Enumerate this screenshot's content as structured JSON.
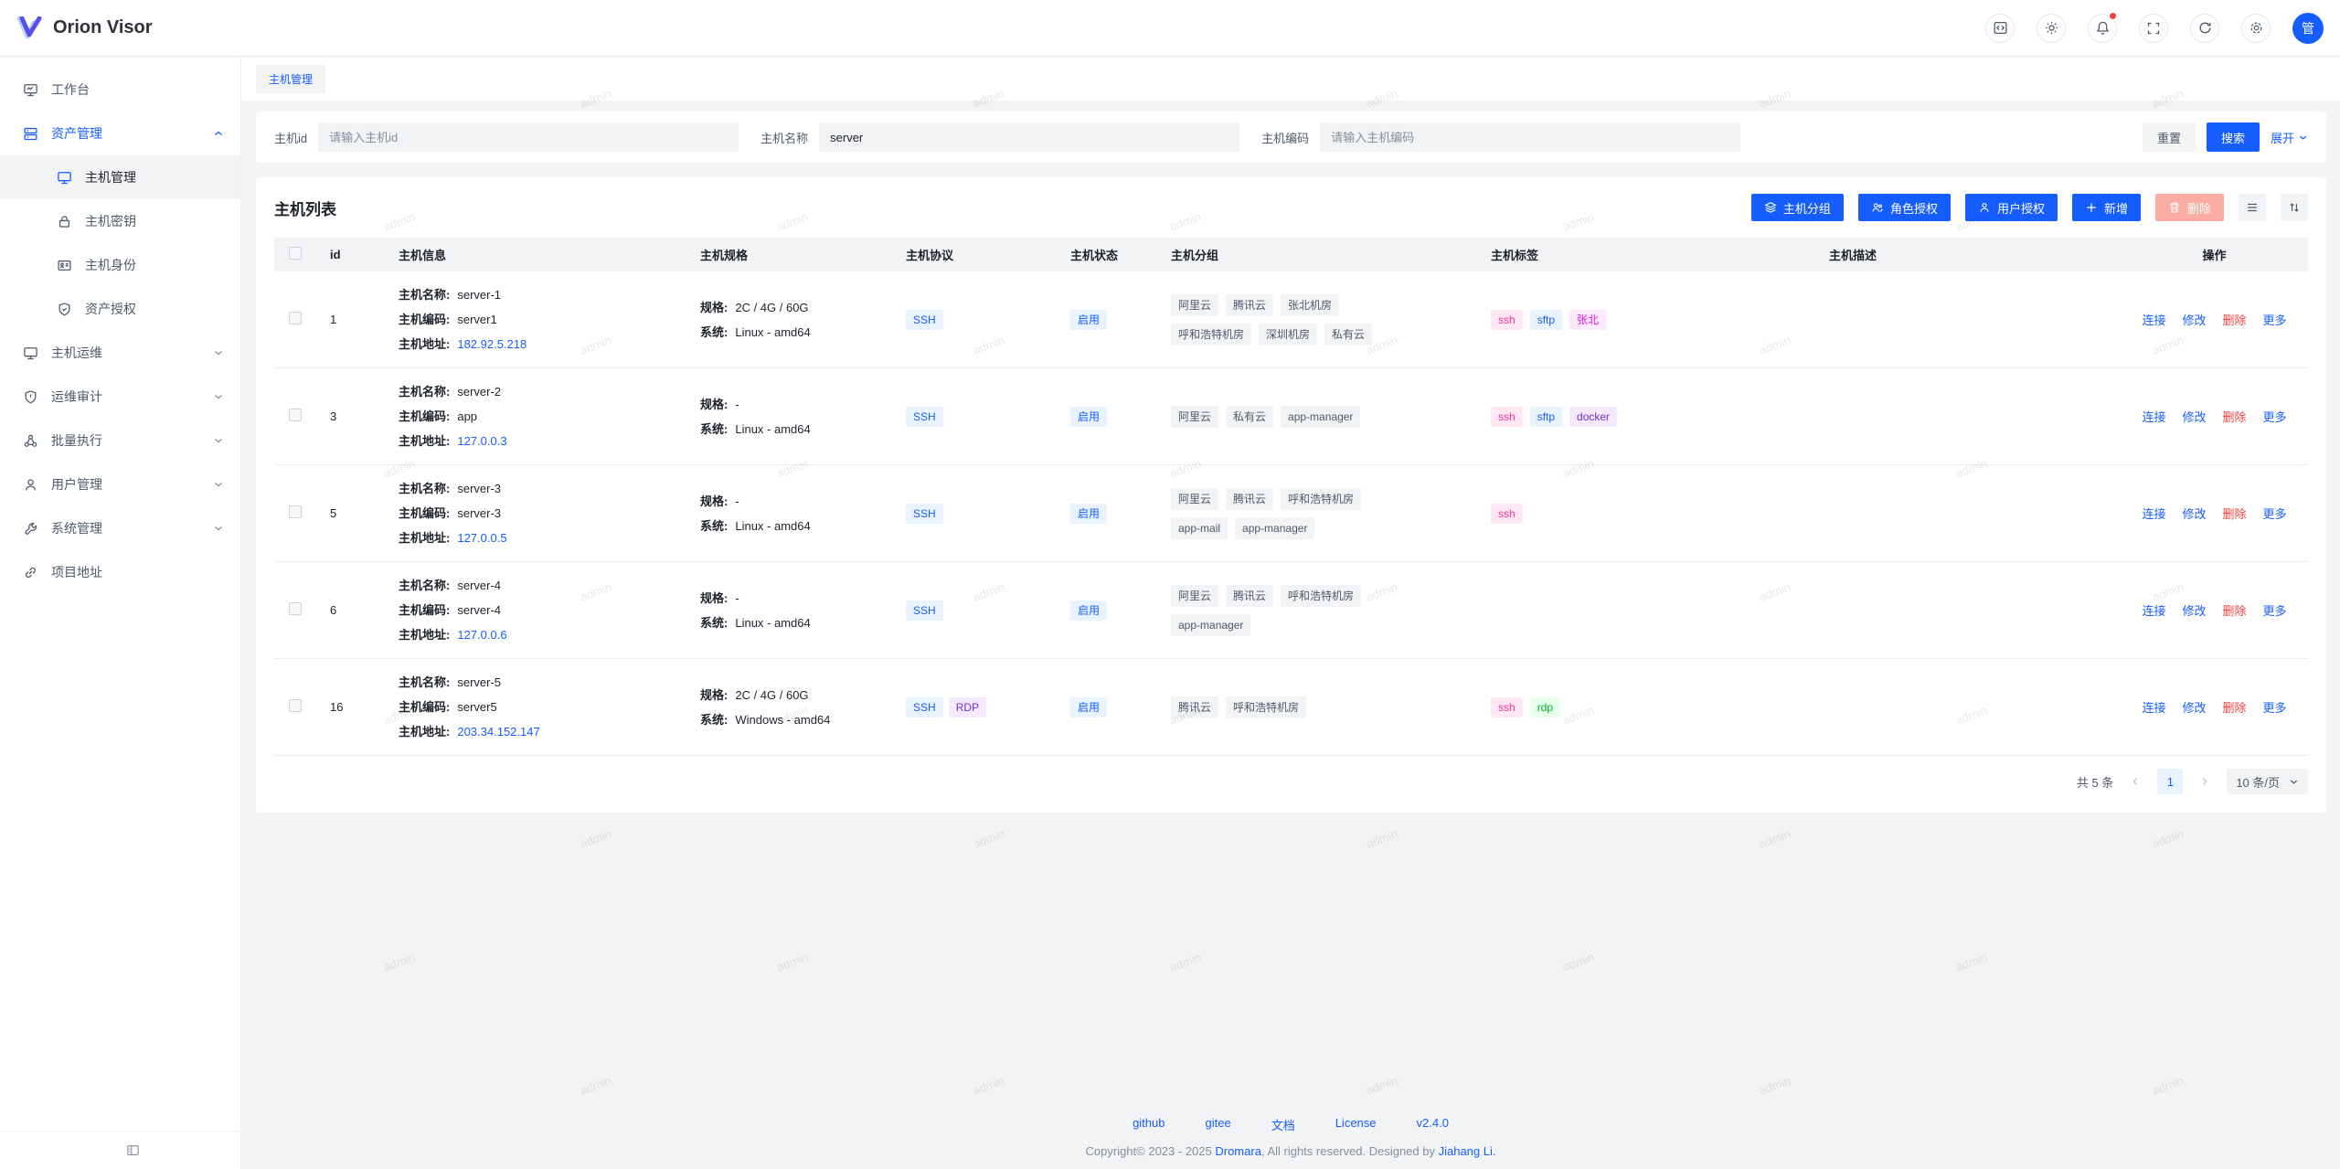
{
  "app": {
    "name": "Orion Visor",
    "avatar": "管"
  },
  "page": {
    "tab": "主机管理"
  },
  "sidebar": {
    "items": [
      {
        "label": "工作台"
      },
      {
        "label": "资产管理",
        "expanded": true,
        "children": [
          {
            "label": "主机管理",
            "selected": true
          },
          {
            "label": "主机密钥"
          },
          {
            "label": "主机身份"
          },
          {
            "label": "资产授权"
          }
        ]
      },
      {
        "label": "主机运维"
      },
      {
        "label": "运维审计"
      },
      {
        "label": "批量执行"
      },
      {
        "label": "用户管理"
      },
      {
        "label": "系统管理"
      },
      {
        "label": "项目地址"
      }
    ]
  },
  "search": {
    "fields": [
      {
        "label": "主机id",
        "placeholder": "请输入主机id",
        "value": ""
      },
      {
        "label": "主机名称",
        "placeholder": "",
        "value": "server"
      },
      {
        "label": "主机编码",
        "placeholder": "请输入主机编码",
        "value": ""
      }
    ],
    "reset_label": "重置",
    "search_label": "搜索",
    "expand_label": "展开"
  },
  "list": {
    "title": "主机列表",
    "toolbar": [
      {
        "label": "主机分组"
      },
      {
        "label": "角色授权"
      },
      {
        "label": "用户授权"
      },
      {
        "label": "新增"
      },
      {
        "label": "删除",
        "disabled": true
      }
    ],
    "columns": [
      "id",
      "主机信息",
      "主机规格",
      "主机协议",
      "主机状态",
      "主机分组",
      "主机标签",
      "主机描述",
      "操作"
    ],
    "info_labels": {
      "name": "主机名称:",
      "code": "主机编码:",
      "address": "主机地址:",
      "spec": "规格:",
      "system": "系统:"
    },
    "row_actions": [
      {
        "label": "连接",
        "name": "connect",
        "danger": false
      },
      {
        "label": "修改",
        "name": "edit",
        "danger": false
      },
      {
        "label": "删除",
        "name": "delete",
        "danger": true
      },
      {
        "label": "更多",
        "name": "more",
        "danger": false
      }
    ],
    "rows": [
      {
        "id": "1",
        "name": "server-1",
        "code": "server1",
        "address": "182.92.5.218",
        "spec": "2C / 4G / 60G",
        "system": "Linux - amd64",
        "protocols": [
          {
            "text": "SSH",
            "color": "blue"
          }
        ],
        "status": "启用",
        "groups": [
          "阿里云",
          "腾讯云",
          "张北机房",
          "呼和浩特机房",
          "深圳机房",
          "私有云"
        ],
        "tags": [
          {
            "text": "ssh",
            "color": "magenta"
          },
          {
            "text": "sftp",
            "color": "blue"
          },
          {
            "text": "张北",
            "color": "pinkpurple"
          }
        ],
        "description": ""
      },
      {
        "id": "3",
        "name": "server-2",
        "code": "app",
        "address": "127.0.0.3",
        "spec": "-",
        "system": "Linux - amd64",
        "protocols": [
          {
            "text": "SSH",
            "color": "blue"
          }
        ],
        "status": "启用",
        "groups": [
          "阿里云",
          "私有云",
          "app-manager"
        ],
        "tags": [
          {
            "text": "ssh",
            "color": "magenta"
          },
          {
            "text": "sftp",
            "color": "blue"
          },
          {
            "text": "docker",
            "color": "purple"
          }
        ],
        "description": ""
      },
      {
        "id": "5",
        "name": "server-3",
        "code": "server-3",
        "address": "127.0.0.5",
        "spec": "-",
        "system": "Linux - amd64",
        "protocols": [
          {
            "text": "SSH",
            "color": "blue"
          }
        ],
        "status": "启用",
        "groups": [
          "阿里云",
          "腾讯云",
          "呼和浩特机房",
          "app-mail",
          "app-manager"
        ],
        "tags": [
          {
            "text": "ssh",
            "color": "magenta"
          }
        ],
        "description": ""
      },
      {
        "id": "6",
        "name": "server-4",
        "code": "server-4",
        "address": "127.0.0.6",
        "spec": "-",
        "system": "Linux - amd64",
        "protocols": [
          {
            "text": "SSH",
            "color": "blue"
          }
        ],
        "status": "启用",
        "groups": [
          "阿里云",
          "腾讯云",
          "呼和浩特机房",
          "app-manager"
        ],
        "tags": [],
        "description": ""
      },
      {
        "id": "16",
        "name": "server-5",
        "code": "server5",
        "address": "203.34.152.147",
        "spec": "2C / 4G / 60G",
        "system": "Windows - amd64",
        "protocols": [
          {
            "text": "SSH",
            "color": "blue"
          },
          {
            "text": "RDP",
            "color": "purple"
          }
        ],
        "status": "启用",
        "groups": [
          "腾讯云",
          "呼和浩特机房"
        ],
        "tags": [
          {
            "text": "ssh",
            "color": "magenta"
          },
          {
            "text": "rdp",
            "color": "green"
          }
        ],
        "description": ""
      }
    ]
  },
  "pagination": {
    "total": "共 5 条",
    "page": "1",
    "page_size": "10 条/页"
  },
  "footer": {
    "links": [
      "github",
      "gitee",
      "文档",
      "License",
      "v2.4.0"
    ],
    "copyright": {
      "prefix": "Copyright© 2023 - 2025 ",
      "brand": "Dromara",
      "middle": ", All rights reserved. Designed by ",
      "author": "Jiahang Li."
    }
  },
  "watermark": {
    "text": "admin"
  },
  "colors": {
    "primary": "#165dff",
    "danger": "#f53f3f",
    "magenta": "#f5319d",
    "pinkpurple": "#d91ad9",
    "purple": "#722ed1",
    "green": "#00b42a",
    "tag_blue_bg": "#e8f3ff",
    "disabled_danger": "#fbaca3"
  }
}
